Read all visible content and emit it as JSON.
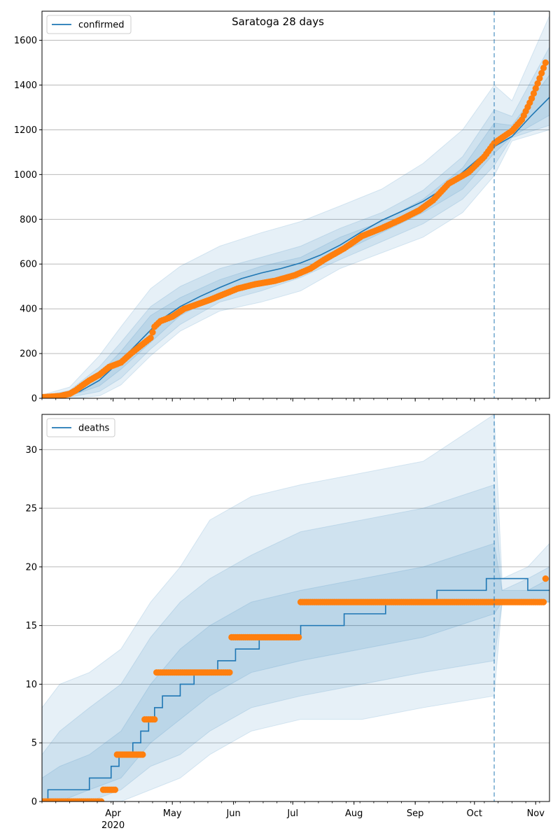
{
  "figure": {
    "title": "Saratoga 28 days"
  },
  "colors": {
    "model": "#1f77b4",
    "observed": "#ff7f0e",
    "band": "#1f77b4",
    "grid": "#b0b0b0"
  },
  "chart_data": [
    {
      "type": "line",
      "legend": "confirmed",
      "legend_position": "top-left",
      "ylim": [
        0,
        1730
      ],
      "yticks": [
        0,
        200,
        400,
        600,
        800,
        1000,
        1200,
        1400,
        1600
      ],
      "grid": true,
      "forecast_start": "2020-10-11",
      "xlim": [
        "2020-02-25",
        "2020-11-08"
      ],
      "model_median": {
        "x": [
          "2020-02-25",
          "2020-03-05",
          "2020-03-15",
          "2020-03-25",
          "2020-04-05",
          "2020-04-15",
          "2020-04-25",
          "2020-05-05",
          "2020-05-15",
          "2020-05-25",
          "2020-06-05",
          "2020-06-15",
          "2020-06-25",
          "2020-07-05",
          "2020-07-15",
          "2020-07-25",
          "2020-08-05",
          "2020-08-15",
          "2020-08-25",
          "2020-09-05",
          "2020-09-15",
          "2020-09-25",
          "2020-10-05",
          "2020-10-11",
          "2020-10-20",
          "2020-10-30",
          "2020-11-08"
        ],
        "y": [
          5,
          10,
          30,
          80,
          170,
          260,
          350,
          410,
          455,
          495,
          535,
          560,
          580,
          605,
          640,
          685,
          745,
          795,
          835,
          880,
          935,
          1010,
          1085,
          1125,
          1170,
          1265,
          1345
        ]
      },
      "bands": [
        {
          "name": "95%",
          "x": [
            "2020-02-25",
            "2020-03-10",
            "2020-03-25",
            "2020-04-05",
            "2020-04-20",
            "2020-05-05",
            "2020-05-25",
            "2020-06-15",
            "2020-07-05",
            "2020-07-25",
            "2020-08-15",
            "2020-09-05",
            "2020-09-25",
            "2020-10-11",
            "2020-10-20",
            "2020-11-08"
          ],
          "lower": [
            0,
            0,
            10,
            60,
            190,
            300,
            390,
            430,
            480,
            580,
            650,
            720,
            830,
            995,
            1150,
            1200
          ],
          "upper": [
            15,
            50,
            190,
            320,
            490,
            590,
            680,
            740,
            790,
            860,
            935,
            1050,
            1200,
            1400,
            1330,
            1710
          ]
        },
        {
          "name": "80%",
          "x": [
            "2020-02-25",
            "2020-03-10",
            "2020-03-25",
            "2020-04-05",
            "2020-04-20",
            "2020-05-05",
            "2020-05-25",
            "2020-06-15",
            "2020-07-05",
            "2020-07-25",
            "2020-08-15",
            "2020-09-05",
            "2020-09-25",
            "2020-10-11",
            "2020-10-20",
            "2020-11-08"
          ],
          "lower": [
            0,
            5,
            30,
            90,
            220,
            330,
            430,
            480,
            540,
            620,
            700,
            780,
            890,
            1040,
            1165,
            1220
          ],
          "upper": [
            10,
            35,
            140,
            250,
            410,
            500,
            580,
            630,
            680,
            760,
            830,
            930,
            1080,
            1290,
            1260,
            1570
          ]
        },
        {
          "name": "50%",
          "x": [
            "2020-02-25",
            "2020-03-10",
            "2020-03-25",
            "2020-04-05",
            "2020-04-20",
            "2020-05-05",
            "2020-05-25",
            "2020-06-15",
            "2020-07-05",
            "2020-07-25",
            "2020-08-15",
            "2020-09-05",
            "2020-09-25",
            "2020-10-11",
            "2020-10-20",
            "2020-11-08"
          ],
          "lower": [
            2,
            10,
            55,
            130,
            250,
            370,
            460,
            520,
            570,
            650,
            740,
            830,
            935,
            1095,
            1170,
            1265
          ],
          "upper": [
            8,
            25,
            110,
            210,
            370,
            450,
            530,
            590,
            630,
            720,
            790,
            890,
            1030,
            1230,
            1220,
            1445
          ]
        }
      ],
      "observed": {
        "x": [
          "2020-02-25",
          "2020-03-05",
          "2020-03-10",
          "2020-03-13",
          "2020-03-16",
          "2020-03-20",
          "2020-03-25",
          "2020-03-30",
          "2020-04-05",
          "2020-04-10",
          "2020-04-15",
          "2020-04-20",
          "2020-04-22",
          "2020-04-25",
          "2020-05-01",
          "2020-05-07",
          "2020-05-12",
          "2020-05-20",
          "2020-05-27",
          "2020-06-03",
          "2020-06-12",
          "2020-06-22",
          "2020-07-02",
          "2020-07-10",
          "2020-07-17",
          "2020-07-27",
          "2020-08-05",
          "2020-08-15",
          "2020-08-25",
          "2020-09-03",
          "2020-09-10",
          "2020-09-18",
          "2020-09-28",
          "2020-10-06",
          "2020-10-11",
          "2020-10-15",
          "2020-10-20",
          "2020-10-25",
          "2020-10-30",
          "2020-11-03",
          "2020-11-06"
        ],
        "y": [
          5,
          10,
          20,
          35,
          55,
          80,
          105,
          140,
          160,
          200,
          235,
          270,
          320,
          345,
          365,
          400,
          415,
          440,
          465,
          490,
          510,
          525,
          550,
          580,
          620,
          670,
          725,
          760,
          800,
          840,
          885,
          960,
          1010,
          1080,
          1140,
          1165,
          1195,
          1245,
          1340,
          1430,
          1500
        ]
      }
    },
    {
      "type": "line",
      "legend": "deaths",
      "legend_position": "top-left",
      "ylim": [
        0,
        33
      ],
      "yticks": [
        0,
        5,
        10,
        15,
        20,
        25,
        30
      ],
      "grid": true,
      "forecast_start": "2020-10-11",
      "xlim": [
        "2020-02-25",
        "2020-11-08"
      ],
      "xtick_labels": [
        "Apr",
        "May",
        "Jun",
        "Jul",
        "Aug",
        "Sep",
        "Oct",
        "Nov"
      ],
      "xtick_dates": [
        "2020-04-01",
        "2020-05-01",
        "2020-06-01",
        "2020-07-01",
        "2020-08-01",
        "2020-09-01",
        "2020-10-01",
        "2020-11-01"
      ],
      "year_label": "2020",
      "model_median": {
        "x": [
          "2020-02-25",
          "2020-02-28",
          "2020-03-20",
          "2020-03-31",
          "2020-04-04",
          "2020-04-11",
          "2020-04-15",
          "2020-04-19",
          "2020-04-22",
          "2020-04-26",
          "2020-05-05",
          "2020-05-12",
          "2020-05-24",
          "2020-06-02",
          "2020-06-14",
          "2020-07-05",
          "2020-07-27",
          "2020-08-17",
          "2020-09-12",
          "2020-10-07",
          "2020-10-11",
          "2020-10-28",
          "2020-11-08"
        ],
        "y": [
          0,
          1,
          2,
          3,
          4,
          5,
          6,
          7,
          8,
          9,
          10,
          11,
          12,
          13,
          14,
          15,
          16,
          17,
          18,
          19,
          19,
          18,
          18
        ]
      },
      "bands": [
        {
          "name": "95%",
          "x": [
            "2020-02-25",
            "2020-03-05",
            "2020-03-20",
            "2020-04-05",
            "2020-04-20",
            "2020-05-05",
            "2020-05-20",
            "2020-06-10",
            "2020-07-05",
            "2020-08-05",
            "2020-09-05",
            "2020-10-11",
            "2020-10-15",
            "2020-10-28",
            "2020-11-08"
          ],
          "lower": [
            0,
            0,
            0,
            0,
            1,
            2,
            4,
            6,
            7,
            7,
            8,
            9,
            17,
            17,
            17
          ],
          "upper": [
            8,
            10,
            11,
            13,
            17,
            20,
            24,
            26,
            27,
            28,
            29,
            33,
            19,
            20,
            22
          ]
        },
        {
          "name": "80%",
          "x": [
            "2020-02-25",
            "2020-03-05",
            "2020-03-20",
            "2020-04-05",
            "2020-04-20",
            "2020-05-05",
            "2020-05-20",
            "2020-06-10",
            "2020-07-05",
            "2020-08-05",
            "2020-09-05",
            "2020-10-11",
            "2020-10-15",
            "2020-10-28",
            "2020-11-08"
          ],
          "lower": [
            0,
            0,
            0,
            1,
            3,
            4,
            6,
            8,
            9,
            10,
            11,
            12,
            17,
            17,
            17
          ],
          "upper": [
            4,
            6,
            8,
            10,
            14,
            17,
            19,
            21,
            23,
            24,
            25,
            27,
            18,
            19,
            20
          ]
        },
        {
          "name": "50%",
          "x": [
            "2020-02-25",
            "2020-03-05",
            "2020-03-20",
            "2020-04-05",
            "2020-04-20",
            "2020-05-05",
            "2020-05-20",
            "2020-06-10",
            "2020-07-05",
            "2020-08-05",
            "2020-09-05",
            "2020-10-11",
            "2020-10-15",
            "2020-10-28",
            "2020-11-08"
          ],
          "lower": [
            0,
            0,
            1,
            2,
            5,
            7,
            9,
            11,
            12,
            13,
            14,
            16,
            17,
            17,
            17
          ],
          "upper": [
            2,
            3,
            4,
            6,
            10,
            13,
            15,
            17,
            18,
            19,
            20,
            22,
            18,
            18,
            19
          ]
        }
      ],
      "observed": {
        "x": [
          "2020-02-25",
          "2020-03-25",
          "2020-03-27",
          "2020-04-03",
          "2020-04-17",
          "2020-04-23",
          "2020-05-21",
          "2020-05-31",
          "2020-06-28",
          "2020-07-05",
          "2020-10-11",
          "2020-11-03",
          "2020-11-06"
        ],
        "y": [
          0,
          0,
          1,
          4,
          7,
          11,
          11,
          14,
          14,
          17,
          17,
          17,
          19
        ]
      }
    }
  ]
}
